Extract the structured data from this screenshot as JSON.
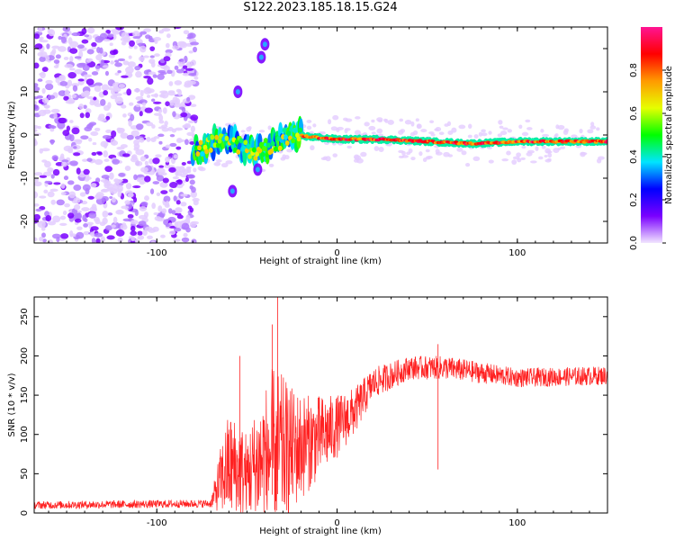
{
  "title": "S122.2023.185.18.15.G24",
  "colors": {
    "snr_line": "#ff2020",
    "spectrogram_noise": "#7b00ff",
    "frame": "#000000"
  },
  "colorbar": {
    "label": "Normalized spectral amplitude",
    "ticks": [
      "0.0",
      "0.2",
      "0.4",
      "0.6",
      "0.8"
    ],
    "tick_values": [
      0.0,
      0.2,
      0.4,
      0.6,
      0.8
    ],
    "range": [
      0,
      1
    ],
    "colormap": [
      "#f2e6ff",
      "#7a00ff",
      "#0000ff",
      "#00e5ff",
      "#00ff00",
      "#e6ff00",
      "#ff9a00",
      "#ff0000",
      "#ff1493"
    ]
  },
  "chart_data": [
    {
      "type": "heatmap",
      "title": "",
      "xlabel": "Height of straight line (km)",
      "ylabel": "Frequency (Hz)",
      "xlim": [
        -168,
        150
      ],
      "ylim": [
        -25,
        25
      ],
      "xticks": [
        -100,
        0,
        100
      ],
      "yticks": [
        -20,
        -10,
        0,
        10,
        20
      ],
      "xtick_labels": [
        "-100",
        "0",
        "100"
      ],
      "ytick_labels": [
        "-20",
        "-10",
        "0",
        "10",
        "20"
      ],
      "description_features": {
        "noise_region_x": [
          -168,
          -78
        ],
        "signal_start_x": -80,
        "signal_track": [
          {
            "x": -80,
            "freq": -4
          },
          {
            "x": -70,
            "freq": -2
          },
          {
            "x": -55,
            "freq": -2
          },
          {
            "x": -45,
            "freq": -4
          },
          {
            "x": -35,
            "freq": -2
          },
          {
            "x": -25,
            "freq": 0
          },
          {
            "x": 0,
            "freq": -1
          },
          {
            "x": 25,
            "freq": -1
          },
          {
            "x": 50,
            "freq": -1.5
          },
          {
            "x": 75,
            "freq": -2
          },
          {
            "x": 100,
            "freq": -1.5
          },
          {
            "x": 150,
            "freq": -1.5
          }
        ],
        "isolated_blobs": [
          {
            "x": -42,
            "freq": 18
          },
          {
            "x": -40,
            "freq": 21
          },
          {
            "x": -55,
            "freq": 10
          },
          {
            "x": -58,
            "freq": -13
          },
          {
            "x": -44,
            "freq": -8
          }
        ]
      }
    },
    {
      "type": "line",
      "title": "",
      "xlabel": "Height of straight line (km)",
      "ylabel": "SNR (10 * v/v)",
      "xlim": [
        -168,
        150
      ],
      "ylim": [
        0,
        275
      ],
      "xticks": [
        -100,
        0,
        100
      ],
      "yticks": [
        0,
        50,
        100,
        150,
        200,
        250
      ],
      "xtick_labels": [
        "-100",
        "0",
        "100"
      ],
      "ytick_labels": [
        "0",
        "50",
        "100",
        "150",
        "200",
        "250"
      ],
      "series": [
        {
          "envelope_points": [
            {
              "x": -168,
              "mean": 10,
              "spread": 5
            },
            {
              "x": -70,
              "mean": 12,
              "spread": 5
            },
            {
              "x": -65,
              "mean": 40,
              "spread": 40
            },
            {
              "x": -60,
              "mean": 60,
              "spread": 70
            },
            {
              "x": -50,
              "mean": 50,
              "spread": 55
            },
            {
              "x": -40,
              "mean": 70,
              "spread": 90
            },
            {
              "x": -35,
              "mean": 80,
              "spread": 110
            },
            {
              "x": -25,
              "mean": 80,
              "spread": 80
            },
            {
              "x": -15,
              "mean": 90,
              "spread": 60
            },
            {
              "x": 0,
              "mean": 110,
              "spread": 40
            },
            {
              "x": 10,
              "mean": 130,
              "spread": 30
            },
            {
              "x": 20,
              "mean": 165,
              "spread": 20
            },
            {
              "x": 40,
              "mean": 185,
              "spread": 15
            },
            {
              "x": 60,
              "mean": 185,
              "spread": 15
            },
            {
              "x": 100,
              "mean": 172,
              "spread": 12
            },
            {
              "x": 150,
              "mean": 175,
              "spread": 12
            }
          ],
          "peaks": [
            {
              "x": -33,
              "value": 275
            },
            {
              "x": -36,
              "value": 240
            },
            {
              "x": -54,
              "value": 200
            },
            {
              "x": 56,
              "value": 215
            }
          ]
        }
      ]
    }
  ]
}
